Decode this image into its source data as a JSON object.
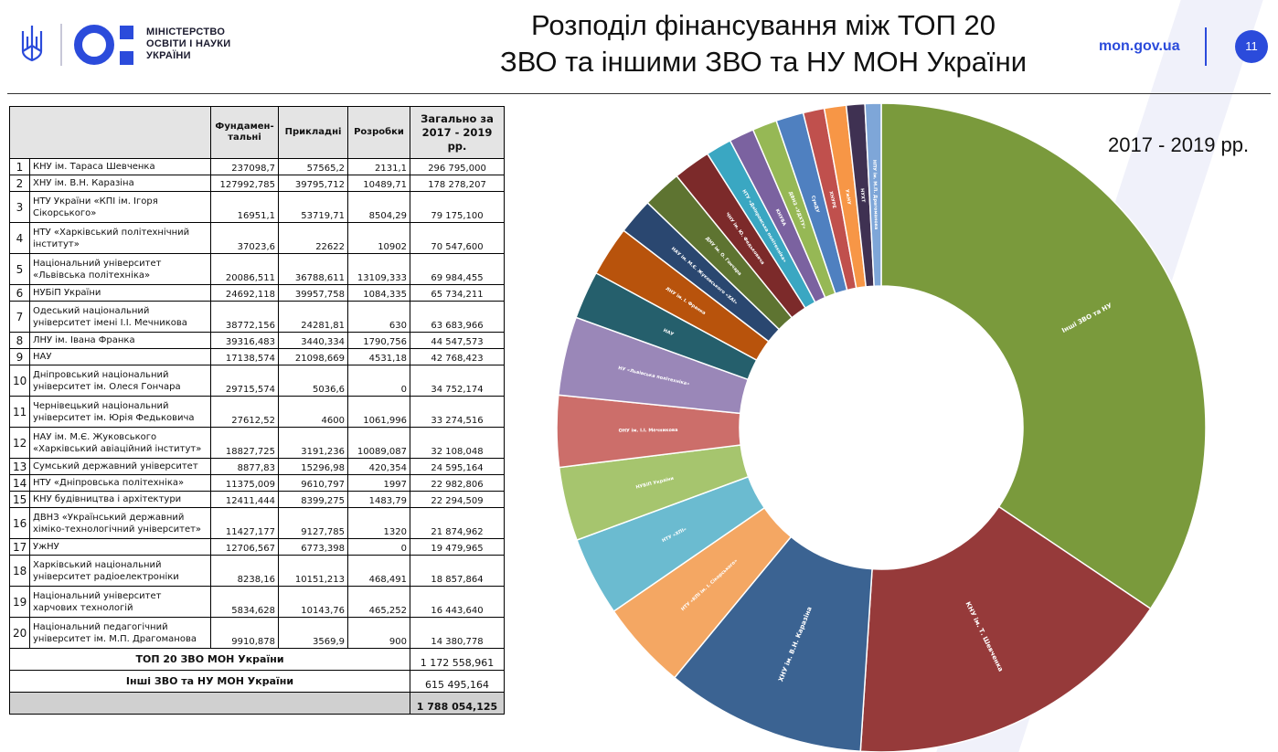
{
  "header": {
    "logo_lines": [
      "МІНІСТЕРСТВО",
      "ОСВІТИ І НАУКИ",
      "УКРАЇНИ"
    ],
    "title_lines": [
      "Розподіл фінансування між ТОП 20",
      "ЗВО та іншими ЗВО та НУ МОН України"
    ],
    "site": "mon.gov.ua",
    "page_number": "11"
  },
  "table": {
    "headers": [
      "Фундамен-тальні",
      "Прикладні",
      "Розробки",
      "Загально за 2017 - 2019 рр."
    ],
    "rows": [
      {
        "n": "1",
        "name": "КНУ ім. Тараса Шевченка",
        "fund": "237098,7",
        "appl": "57565,2",
        "dev": "2131,1",
        "total": "296 795,000"
      },
      {
        "n": "2",
        "name": "ХНУ ім. В.Н. Каразіна",
        "fund": "127992,785",
        "appl": "39795,712",
        "dev": "10489,71",
        "total": "178 278,207"
      },
      {
        "n": "3",
        "name": "НТУ України «КПІ ім. Ігоря Сікорського»",
        "fund": "16951,1",
        "appl": "53719,71",
        "dev": "8504,29",
        "total": "79 175,100"
      },
      {
        "n": "4",
        "name": "НТУ «Харківський політехнічний інститут»",
        "fund": "37023,6",
        "appl": "22622",
        "dev": "10902",
        "total": "70 547,600"
      },
      {
        "n": "5",
        "name": "Національний університет «Львівська політехніка»",
        "fund": "20086,511",
        "appl": "36788,611",
        "dev": "13109,333",
        "total": "69 984,455"
      },
      {
        "n": "6",
        "name": "НУБіП України",
        "fund": "24692,118",
        "appl": "39957,758",
        "dev": "1084,335",
        "total": "65 734,211"
      },
      {
        "n": "7",
        "name": "Одеський національний університет імені І.І. Мечникова",
        "fund": "38772,156",
        "appl": "24281,81",
        "dev": "630",
        "total": "63 683,966"
      },
      {
        "n": "8",
        "name": "ЛНУ ім. Івана Франка",
        "fund": "39316,483",
        "appl": "3440,334",
        "dev": "1790,756",
        "total": "44 547,573"
      },
      {
        "n": "9",
        "name": "НАУ",
        "fund": "17138,574",
        "appl": "21098,669",
        "dev": "4531,18",
        "total": "42 768,423"
      },
      {
        "n": "10",
        "name": "Дніпровський національний університет ім. Олеся Гончара",
        "fund": "29715,574",
        "appl": "5036,6",
        "dev": "0",
        "total": "34 752,174"
      },
      {
        "n": "11",
        "name": "Чернівецький національний університет ім. Юрія Федьковича",
        "fund": "27612,52",
        "appl": "4600",
        "dev": "1061,996",
        "total": "33 274,516"
      },
      {
        "n": "12",
        "name": "НАУ ім. М.Є. Жуковського «Харківський авіаційний інститут»",
        "fund": "18827,725",
        "appl": "3191,236",
        "dev": "10089,087",
        "total": "32 108,048"
      },
      {
        "n": "13",
        "name": "Сумський державний університет",
        "fund": "8877,83",
        "appl": "15296,98",
        "dev": "420,354",
        "total": "24 595,164"
      },
      {
        "n": "14",
        "name": "НТУ «Дніпровська політехніка»",
        "fund": "11375,009",
        "appl": "9610,797",
        "dev": "1997",
        "total": "22 982,806"
      },
      {
        "n": "15",
        "name": "КНУ будівництва і архітектури",
        "fund": "12411,444",
        "appl": "8399,275",
        "dev": "1483,79",
        "total": "22 294,509"
      },
      {
        "n": "16",
        "name": "ДВНЗ «Український державний хіміко-технологічний університет»",
        "fund": "11427,177",
        "appl": "9127,785",
        "dev": "1320",
        "total": "21 874,962"
      },
      {
        "n": "17",
        "name": "УжНУ",
        "fund": "12706,567",
        "appl": "6773,398",
        "dev": "0",
        "total": "19 479,965"
      },
      {
        "n": "18",
        "name": "Харківський національний університет радіоелектроніки",
        "fund": "8238,16",
        "appl": "10151,213",
        "dev": "468,491",
        "total": "18 857,864"
      },
      {
        "n": "19",
        "name": "Національний університет харчових технологій",
        "fund": "5834,628",
        "appl": "10143,76",
        "dev": "465,252",
        "total": "16 443,640"
      },
      {
        "n": "20",
        "name": "Національний педагогічний університет ім. М.П. Драгоманова",
        "fund": "9910,878",
        "appl": "3569,9",
        "dev": "900",
        "total": "14 380,778"
      }
    ],
    "footer": [
      {
        "label": "ТОП 20 ЗВО МОН України",
        "value": "1 172 558,961"
      },
      {
        "label": "Інші ЗВО та НУ МОН України",
        "value": "615 495,164"
      },
      {
        "label": "",
        "value": "1 788 054,125"
      }
    ]
  },
  "chart_data": {
    "type": "pie",
    "subtype": "donut",
    "period_label": "2017 - 2019 рр.",
    "legend": "none",
    "slices": [
      {
        "label": "Інші ЗВО та НУ",
        "value": 615495.164,
        "color": "#7a9a3c"
      },
      {
        "label": "КНУ ім. Т. Шевченка",
        "value": 296795.0,
        "color": "#963a3a"
      },
      {
        "label": "ХНУ ім. В.Н. Каразіна",
        "value": 178278.207,
        "color": "#3b6392"
      },
      {
        "label": "НТУ «КПІ ім. І. Сікорського»",
        "value": 79175.1,
        "color": "#f4a763"
      },
      {
        "label": "НТУ «ХПІ»",
        "value": 70547.6,
        "color": "#6bbbd0"
      },
      {
        "label": "НУБіП України",
        "value": 65734.211,
        "color": "#a6c56e"
      },
      {
        "label": "ОНУ ім. І.І. Мечникова",
        "value": 63683.966,
        "color": "#cc6e6a"
      },
      {
        "label": "НУ «Львівська політехніка»",
        "value": 69984.455,
        "color": "#9a87b8"
      },
      {
        "label": "НАУ",
        "value": 42768.423,
        "color": "#255f6c"
      },
      {
        "label": "ЛНУ ім. І. Франка",
        "value": 44547.573,
        "color": "#b8530c"
      },
      {
        "label": "НАУ ім. М.Є. Жуковського «ХАІ»",
        "value": 32108.048,
        "color": "#2a4770"
      },
      {
        "label": "ДНУ ім. О. Гончара",
        "value": 34752.174,
        "color": "#5e7431"
      },
      {
        "label": "ЧНУ ім. Ю. Федьковича",
        "value": 33274.516,
        "color": "#7c2a2a"
      },
      {
        "label": "НТУ «Дніпровська політехніка»",
        "value": 22982.806,
        "color": "#3aa7c2"
      },
      {
        "label": "КНУБА",
        "value": 22294.509,
        "color": "#7b62a0"
      },
      {
        "label": "ДВНЗ «УДХТУ»",
        "value": 21874.962,
        "color": "#96b855"
      },
      {
        "label": "СумДУ",
        "value": 24595.164,
        "color": "#4f80c0"
      },
      {
        "label": "ХНУРЕ",
        "value": 18857.864,
        "color": "#c0504d"
      },
      {
        "label": "УжНУ",
        "value": 19479.965,
        "color": "#f79646"
      },
      {
        "label": "НУХТ",
        "value": 16443.64,
        "color": "#3f3152"
      },
      {
        "label": "НПУ ім. М.П. Драгоманова",
        "value": 14380.778,
        "color": "#7ea6d8"
      }
    ]
  }
}
